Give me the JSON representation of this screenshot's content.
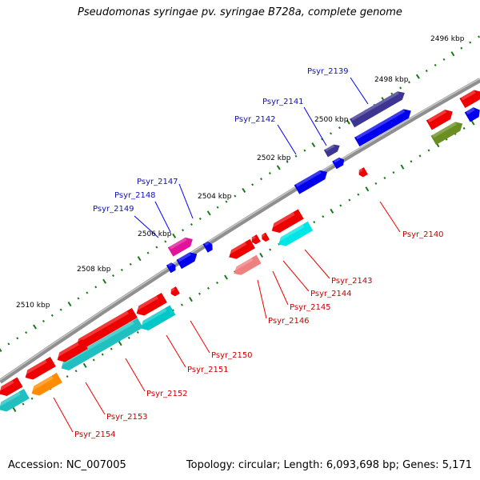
{
  "title": "Pseudomonas syringae pv. syringae B728a, complete genome",
  "footer": {
    "accession": "Accession: NC_007005",
    "topology": "Topology: circular; Length: 6,093,698 bp; Genes: 5,171"
  },
  "colors": {
    "backbone": "#8f8f8f",
    "tick_dot": "#1a7a1a",
    "forward_gene": "#0000ee",
    "reverse_gene": "#ee0000",
    "forward_label": "#1111bb",
    "reverse_label": "#cc0000"
  },
  "tick_labels": [
    "2496 kbp",
    "2498 kbp",
    "2500 kbp",
    "2502 kbp",
    "2504 kbp",
    "2506 kbp",
    "2508 kbp",
    "2510 kbp"
  ],
  "forward_labels": [
    "Psyr_2139",
    "Psyr_2141",
    "Psyr_2142",
    "Psyr_2147",
    "Psyr_2148",
    "Psyr_2149"
  ],
  "reverse_labels": [
    "Psyr_2140",
    "Psyr_2143",
    "Psyr_2144",
    "Psyr_2145",
    "Psyr_2146",
    "Psyr_2150",
    "Psyr_2151",
    "Psyr_2152",
    "Psyr_2153",
    "Psyr_2154"
  ]
}
